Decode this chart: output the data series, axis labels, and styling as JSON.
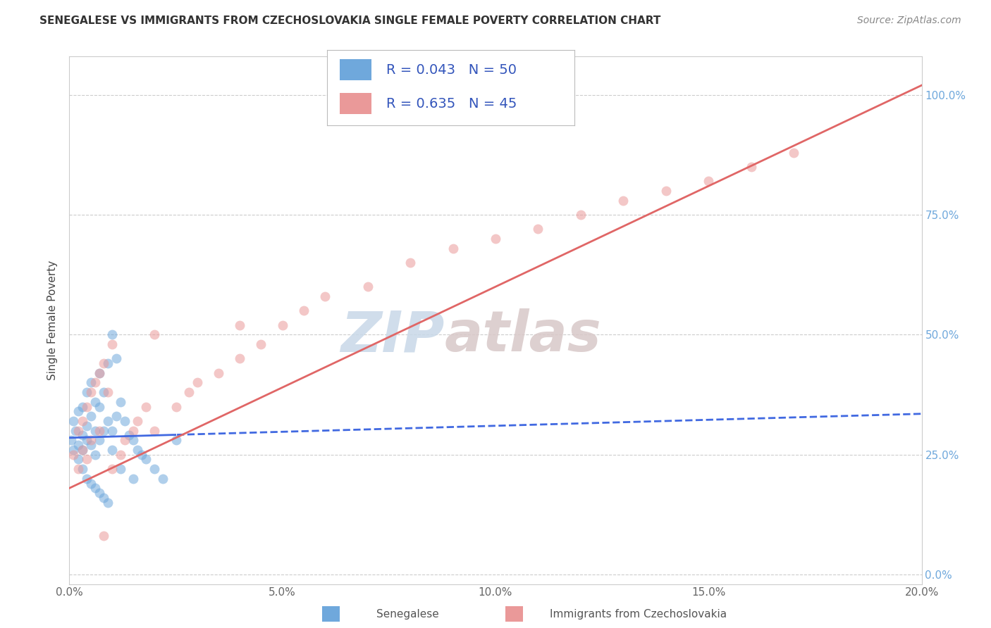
{
  "title": "SENEGALESE VS IMMIGRANTS FROM CZECHOSLOVAKIA SINGLE FEMALE POVERTY CORRELATION CHART",
  "source": "Source: ZipAtlas.com",
  "ylabel": "Single Female Poverty",
  "legend_label_1": "Senegalese",
  "legend_label_2": "Immigrants from Czechoslovakia",
  "R1": 0.043,
  "N1": 50,
  "R2": 0.635,
  "N2": 45,
  "color1": "#6fa8dc",
  "color2": "#ea9999",
  "trend1_color": "#4169e1",
  "trend2_color": "#e06666",
  "xlim": [
    0.0,
    0.2
  ],
  "ylim": [
    -0.02,
    1.08
  ],
  "xticks": [
    0.0,
    0.05,
    0.1,
    0.15,
    0.2
  ],
  "yticks": [
    0.0,
    0.25,
    0.5,
    0.75,
    1.0
  ],
  "xtick_labels": [
    "0.0%",
    "5.0%",
    "10.0%",
    "15.0%",
    "20.0%"
  ],
  "ytick_labels": [
    "0.0%",
    "25.0%",
    "50.0%",
    "75.0%",
    "100.0%"
  ],
  "watermark_zip": "ZIP",
  "watermark_atlas": "atlas",
  "blue_x": [
    0.0005,
    0.001,
    0.001,
    0.0015,
    0.002,
    0.002,
    0.002,
    0.003,
    0.003,
    0.003,
    0.004,
    0.004,
    0.004,
    0.005,
    0.005,
    0.005,
    0.006,
    0.006,
    0.006,
    0.007,
    0.007,
    0.007,
    0.008,
    0.008,
    0.009,
    0.009,
    0.01,
    0.01,
    0.011,
    0.011,
    0.012,
    0.013,
    0.014,
    0.015,
    0.016,
    0.017,
    0.018,
    0.02,
    0.022,
    0.025,
    0.003,
    0.004,
    0.005,
    0.006,
    0.007,
    0.008,
    0.009,
    0.01,
    0.012,
    0.015
  ],
  "blue_y": [
    0.28,
    0.32,
    0.26,
    0.3,
    0.34,
    0.27,
    0.24,
    0.35,
    0.29,
    0.26,
    0.38,
    0.31,
    0.28,
    0.4,
    0.33,
    0.27,
    0.36,
    0.3,
    0.25,
    0.42,
    0.35,
    0.28,
    0.38,
    0.3,
    0.44,
    0.32,
    0.5,
    0.3,
    0.45,
    0.33,
    0.36,
    0.32,
    0.29,
    0.28,
    0.26,
    0.25,
    0.24,
    0.22,
    0.2,
    0.28,
    0.22,
    0.2,
    0.19,
    0.18,
    0.17,
    0.16,
    0.15,
    0.26,
    0.22,
    0.2
  ],
  "pink_x": [
    0.001,
    0.002,
    0.002,
    0.003,
    0.003,
    0.004,
    0.004,
    0.005,
    0.005,
    0.006,
    0.007,
    0.007,
    0.008,
    0.009,
    0.01,
    0.01,
    0.012,
    0.013,
    0.015,
    0.016,
    0.018,
    0.02,
    0.025,
    0.028,
    0.03,
    0.035,
    0.04,
    0.045,
    0.05,
    0.055,
    0.06,
    0.07,
    0.08,
    0.09,
    0.1,
    0.11,
    0.12,
    0.13,
    0.14,
    0.15,
    0.16,
    0.17,
    0.04,
    0.02,
    0.008
  ],
  "pink_y": [
    0.25,
    0.3,
    0.22,
    0.32,
    0.26,
    0.35,
    0.24,
    0.38,
    0.28,
    0.4,
    0.42,
    0.3,
    0.44,
    0.38,
    0.48,
    0.22,
    0.25,
    0.28,
    0.3,
    0.32,
    0.35,
    0.3,
    0.35,
    0.38,
    0.4,
    0.42,
    0.45,
    0.48,
    0.52,
    0.55,
    0.58,
    0.6,
    0.65,
    0.68,
    0.7,
    0.72,
    0.75,
    0.78,
    0.8,
    0.82,
    0.85,
    0.88,
    0.52,
    0.5,
    0.08
  ],
  "figsize": [
    14.06,
    8.92
  ],
  "dpi": 100
}
